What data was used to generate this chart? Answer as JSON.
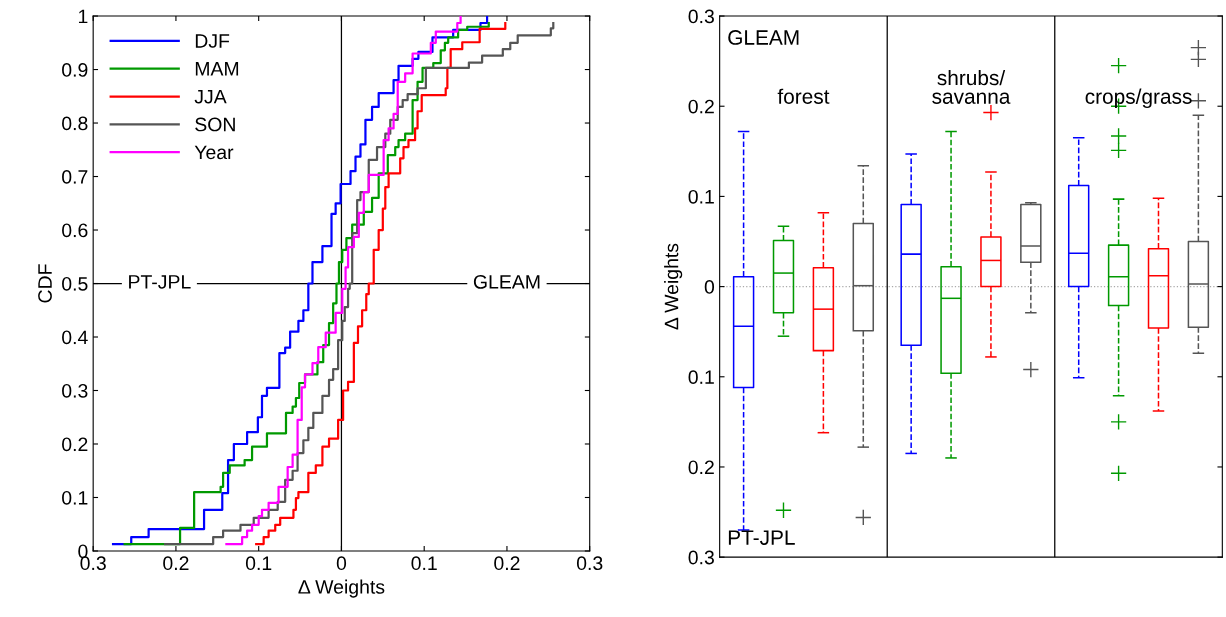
{
  "chart_data": [
    {
      "type": "step",
      "xlabel": "Δ Weights",
      "ylabel": "CDF",
      "legend": "top left",
      "line_style": "solid",
      "marker": "none",
      "xlim": [
        -0.3,
        0.3
      ],
      "xticks": [
        {
          "value": -0.3,
          "label": "0.3"
        },
        {
          "value": -0.2,
          "label": "0.2"
        },
        {
          "value": -0.1,
          "label": "0.1"
        },
        0,
        0.1,
        0.2,
        0.3
      ],
      "ylim": [
        0,
        1
      ],
      "yticks": [
        0,
        0.1,
        0.2,
        0.3,
        0.4,
        0.5,
        0.6,
        0.7,
        0.8,
        0.9,
        1
      ],
      "ref_lines": [
        {
          "axis": "x",
          "value": 0,
          "color": "#000000",
          "line_style": "solid"
        },
        {
          "axis": "y",
          "value": 0.5,
          "color": "#000000",
          "line_style": "solid"
        }
      ],
      "annotations": [
        {
          "text": "PT-JPL",
          "x": -0.22,
          "y": 0.5
        },
        {
          "text": "GLEAM",
          "x": 0.2,
          "y": 0.5
        }
      ],
      "series": [
        {
          "name": "DJF",
          "color": "#0000ff",
          "x": [
            -0.276,
            -0.254,
            -0.233,
            -0.166,
            -0.144,
            -0.137,
            -0.13,
            -0.114,
            -0.101,
            -0.096,
            -0.09,
            -0.075,
            -0.068,
            -0.062,
            -0.052,
            -0.046,
            -0.04,
            -0.035,
            -0.023,
            -0.012,
            -0.007,
            -0.001,
            0.011,
            0.017,
            0.023,
            0.029,
            0.037,
            0.045,
            0.063,
            0.069,
            0.086,
            0.093,
            0.11,
            0.135,
            0.168,
            0.176
          ],
          "values": [
            0.013,
            0.026,
            0.041,
            0.077,
            0.108,
            0.17,
            0.2,
            0.222,
            0.25,
            0.29,
            0.305,
            0.37,
            0.38,
            0.41,
            0.43,
            0.45,
            0.5,
            0.54,
            0.57,
            0.63,
            0.65,
            0.686,
            0.71,
            0.737,
            0.76,
            0.806,
            0.83,
            0.856,
            0.88,
            0.907,
            0.92,
            0.933,
            0.96,
            0.974,
            0.987,
            1.0
          ]
        },
        {
          "name": "MAM",
          "color": "#009900",
          "x": [
            -0.262,
            -0.195,
            -0.178,
            -0.146,
            -0.143,
            -0.135,
            -0.117,
            -0.108,
            -0.09,
            -0.067,
            -0.059,
            -0.055,
            -0.051,
            -0.044,
            -0.029,
            -0.022,
            -0.015,
            -0.01,
            -0.006,
            -0.003,
            0.001,
            0.006,
            0.013,
            0.027,
            0.037,
            0.045,
            0.056,
            0.065,
            0.069,
            0.077,
            0.086,
            0.092,
            0.098,
            0.111,
            0.12,
            0.125,
            0.129,
            0.141,
            0.152,
            0.178
          ],
          "values": [
            0.013,
            0.043,
            0.11,
            0.12,
            0.146,
            0.16,
            0.17,
            0.195,
            0.22,
            0.258,
            0.27,
            0.286,
            0.314,
            0.33,
            0.353,
            0.385,
            0.426,
            0.463,
            0.5,
            0.54,
            0.563,
            0.585,
            0.61,
            0.634,
            0.66,
            0.706,
            0.74,
            0.755,
            0.768,
            0.78,
            0.843,
            0.877,
            0.903,
            0.912,
            0.936,
            0.95,
            0.96,
            0.974,
            0.98,
            0.987
          ]
        },
        {
          "name": "JJA",
          "color": "#ff0000",
          "x": [
            -0.103,
            -0.094,
            -0.088,
            -0.08,
            -0.074,
            -0.058,
            -0.055,
            -0.052,
            -0.04,
            -0.031,
            -0.023,
            -0.015,
            -0.004,
            0.002,
            0.008,
            0.015,
            0.02,
            0.025,
            0.03,
            0.033,
            0.039,
            0.045,
            0.05,
            0.053,
            0.057,
            0.071,
            0.075,
            0.081,
            0.089,
            0.092,
            0.097,
            0.126,
            0.128,
            0.132,
            0.146,
            0.167,
            0.198
          ],
          "values": [
            0.013,
            0.026,
            0.038,
            0.049,
            0.062,
            0.077,
            0.099,
            0.11,
            0.146,
            0.16,
            0.195,
            0.21,
            0.245,
            0.3,
            0.316,
            0.389,
            0.42,
            0.45,
            0.48,
            0.5,
            0.563,
            0.6,
            0.64,
            0.68,
            0.706,
            0.734,
            0.755,
            0.768,
            0.79,
            0.822,
            0.852,
            0.865,
            0.903,
            0.938,
            0.951,
            0.976,
            0.987
          ]
        },
        {
          "name": "SON",
          "color": "#555555",
          "x": [
            -0.213,
            -0.155,
            -0.143,
            -0.122,
            -0.106,
            -0.088,
            -0.077,
            -0.068,
            -0.059,
            -0.053,
            -0.046,
            -0.04,
            -0.034,
            -0.023,
            -0.015,
            -0.01,
            -0.004,
            0.001,
            0.004,
            0.008,
            0.01,
            0.013,
            0.019,
            0.023,
            0.033,
            0.043,
            0.053,
            0.059,
            0.068,
            0.074,
            0.08,
            0.092,
            0.102,
            0.154,
            0.17,
            0.195,
            0.204,
            0.213,
            0.253,
            0.256
          ],
          "values": [
            0.013,
            0.026,
            0.038,
            0.049,
            0.062,
            0.077,
            0.092,
            0.133,
            0.15,
            0.183,
            0.207,
            0.23,
            0.258,
            0.29,
            0.32,
            0.34,
            0.394,
            0.43,
            0.456,
            0.49,
            0.5,
            0.594,
            0.656,
            0.671,
            0.731,
            0.755,
            0.78,
            0.806,
            0.83,
            0.843,
            0.854,
            0.865,
            0.903,
            0.913,
            0.926,
            0.938,
            0.95,
            0.964,
            0.977,
            0.987
          ]
        },
        {
          "name": "Year",
          "color": "#ff00ff",
          "x": [
            -0.139,
            -0.12,
            -0.114,
            -0.108,
            -0.1,
            -0.096,
            -0.088,
            -0.076,
            -0.065,
            -0.059,
            -0.053,
            -0.048,
            -0.044,
            -0.035,
            -0.028,
            -0.019,
            -0.007,
            0.001,
            0.005,
            0.008,
            0.015,
            0.021,
            0.027,
            0.033,
            0.051,
            0.057,
            0.063,
            0.068,
            0.077,
            0.086,
            0.108,
            0.114,
            0.14,
            0.144
          ],
          "values": [
            0.013,
            0.026,
            0.038,
            0.049,
            0.065,
            0.077,
            0.09,
            0.12,
            0.157,
            0.18,
            0.245,
            0.306,
            0.33,
            0.351,
            0.381,
            0.408,
            0.445,
            0.49,
            0.53,
            0.568,
            0.587,
            0.632,
            0.671,
            0.703,
            0.768,
            0.79,
            0.817,
            0.877,
            0.893,
            0.93,
            0.95,
            0.971,
            0.987,
            1.0
          ]
        }
      ]
    },
    {
      "type": "box",
      "ylabel": "Δ Weights",
      "legend": false,
      "categories": [
        "forest",
        "shrubs/\nsavanna",
        "crops/grass"
      ],
      "ylim": [
        -0.3,
        0.3
      ],
      "yticks": [
        {
          "value": -0.3,
          "label": "0.3"
        },
        {
          "value": -0.2,
          "label": "0.2"
        },
        {
          "value": -0.1,
          "label": "0.1"
        },
        0,
        0.1,
        0.2,
        0.3
      ],
      "ref_lines": [
        {
          "axis": "y",
          "value": 0,
          "color": "#aaaaaa",
          "line_style": "dotted"
        }
      ],
      "annotations": [
        "GLEAM",
        "PT-JPL"
      ],
      "series": [
        {
          "color": "#0000ff",
          "boxes": [
            {
              "low": -0.27,
              "q1": -0.112,
              "median": -0.044,
              "q3": 0.011,
              "high": 0.172
            },
            {
              "low": -0.185,
              "q1": -0.065,
              "median": 0.036,
              "q3": 0.091,
              "high": 0.147
            },
            {
              "low": -0.101,
              "q1": 0.0,
              "median": 0.037,
              "q3": 0.112,
              "high": 0.165
            }
          ]
        },
        {
          "color": "#009900",
          "boxes": [
            {
              "low": -0.055,
              "q1": -0.029,
              "median": 0.015,
              "q3": 0.051,
              "high": 0.067,
              "outliers": [
                -0.248
              ]
            },
            {
              "low": -0.19,
              "q1": -0.096,
              "median": -0.013,
              "q3": 0.022,
              "high": 0.172
            },
            {
              "low": -0.121,
              "q1": -0.021,
              "median": 0.011,
              "q3": 0.046,
              "high": 0.097,
              "outliers": [
                0.245,
                0.2,
                0.167,
                0.151,
                -0.15,
                -0.207
              ]
            }
          ]
        },
        {
          "color": "#ff0000",
          "boxes": [
            {
              "low": -0.162,
              "q1": -0.071,
              "median": -0.025,
              "q3": 0.021,
              "high": 0.082
            },
            {
              "low": -0.078,
              "q1": 0.0,
              "median": 0.029,
              "q3": 0.055,
              "high": 0.127,
              "outliers": [
                0.193
              ]
            },
            {
              "low": -0.138,
              "q1": -0.046,
              "median": 0.012,
              "q3": 0.042,
              "high": 0.098
            }
          ]
        },
        {
          "color": "#555555",
          "boxes": [
            {
              "low": -0.178,
              "q1": -0.049,
              "median": 0.001,
              "q3": 0.07,
              "high": 0.134,
              "outliers": [
                -0.256
              ]
            },
            {
              "low": -0.029,
              "q1": 0.027,
              "median": 0.045,
              "q3": 0.091,
              "high": 0.093,
              "outliers": [
                -0.092
              ]
            },
            {
              "low": -0.074,
              "q1": -0.045,
              "median": 0.003,
              "q3": 0.05,
              "high": 0.19,
              "outliers": [
                0.265,
                0.252,
                0.206
              ]
            }
          ]
        }
      ]
    }
  ]
}
